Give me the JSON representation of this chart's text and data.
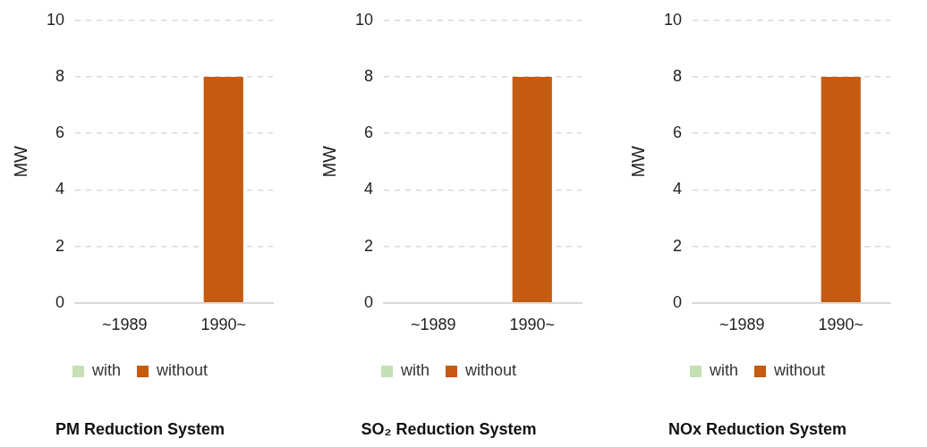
{
  "chart_data": [
    {
      "type": "bar",
      "title": "PM Reduction System",
      "ylabel": "MW",
      "categories": [
        "~1989",
        "1990~"
      ],
      "stacked": true,
      "series": [
        {
          "name": "with",
          "color": "#c5e0b4",
          "values": [
            0,
            0
          ]
        },
        {
          "name": "without",
          "color": "#c55a11",
          "values": [
            0,
            8
          ]
        }
      ],
      "ylim": [
        0,
        10
      ],
      "yticks": [
        0,
        2,
        4,
        6,
        8,
        10
      ],
      "grid": "y",
      "legend": "bottom"
    },
    {
      "type": "bar",
      "title": "SO₂ Reduction System",
      "ylabel": "MW",
      "categories": [
        "~1989",
        "1990~"
      ],
      "stacked": true,
      "series": [
        {
          "name": "with",
          "color": "#c5e0b4",
          "values": [
            0,
            0
          ]
        },
        {
          "name": "without",
          "color": "#c55a11",
          "values": [
            0,
            8
          ]
        }
      ],
      "ylim": [
        0,
        10
      ],
      "yticks": [
        0,
        2,
        4,
        6,
        8,
        10
      ],
      "grid": "y",
      "legend": "bottom"
    },
    {
      "type": "bar",
      "title": "NOx Reduction System",
      "ylabel": "MW",
      "categories": [
        "~1989",
        "1990~"
      ],
      "stacked": true,
      "series": [
        {
          "name": "with",
          "color": "#c5e0b4",
          "values": [
            0,
            0
          ]
        },
        {
          "name": "without",
          "color": "#c55a11",
          "values": [
            0,
            8
          ]
        }
      ],
      "ylim": [
        0,
        10
      ],
      "yticks": [
        0,
        2,
        4,
        6,
        8,
        10
      ],
      "grid": "y",
      "legend": "bottom"
    }
  ]
}
